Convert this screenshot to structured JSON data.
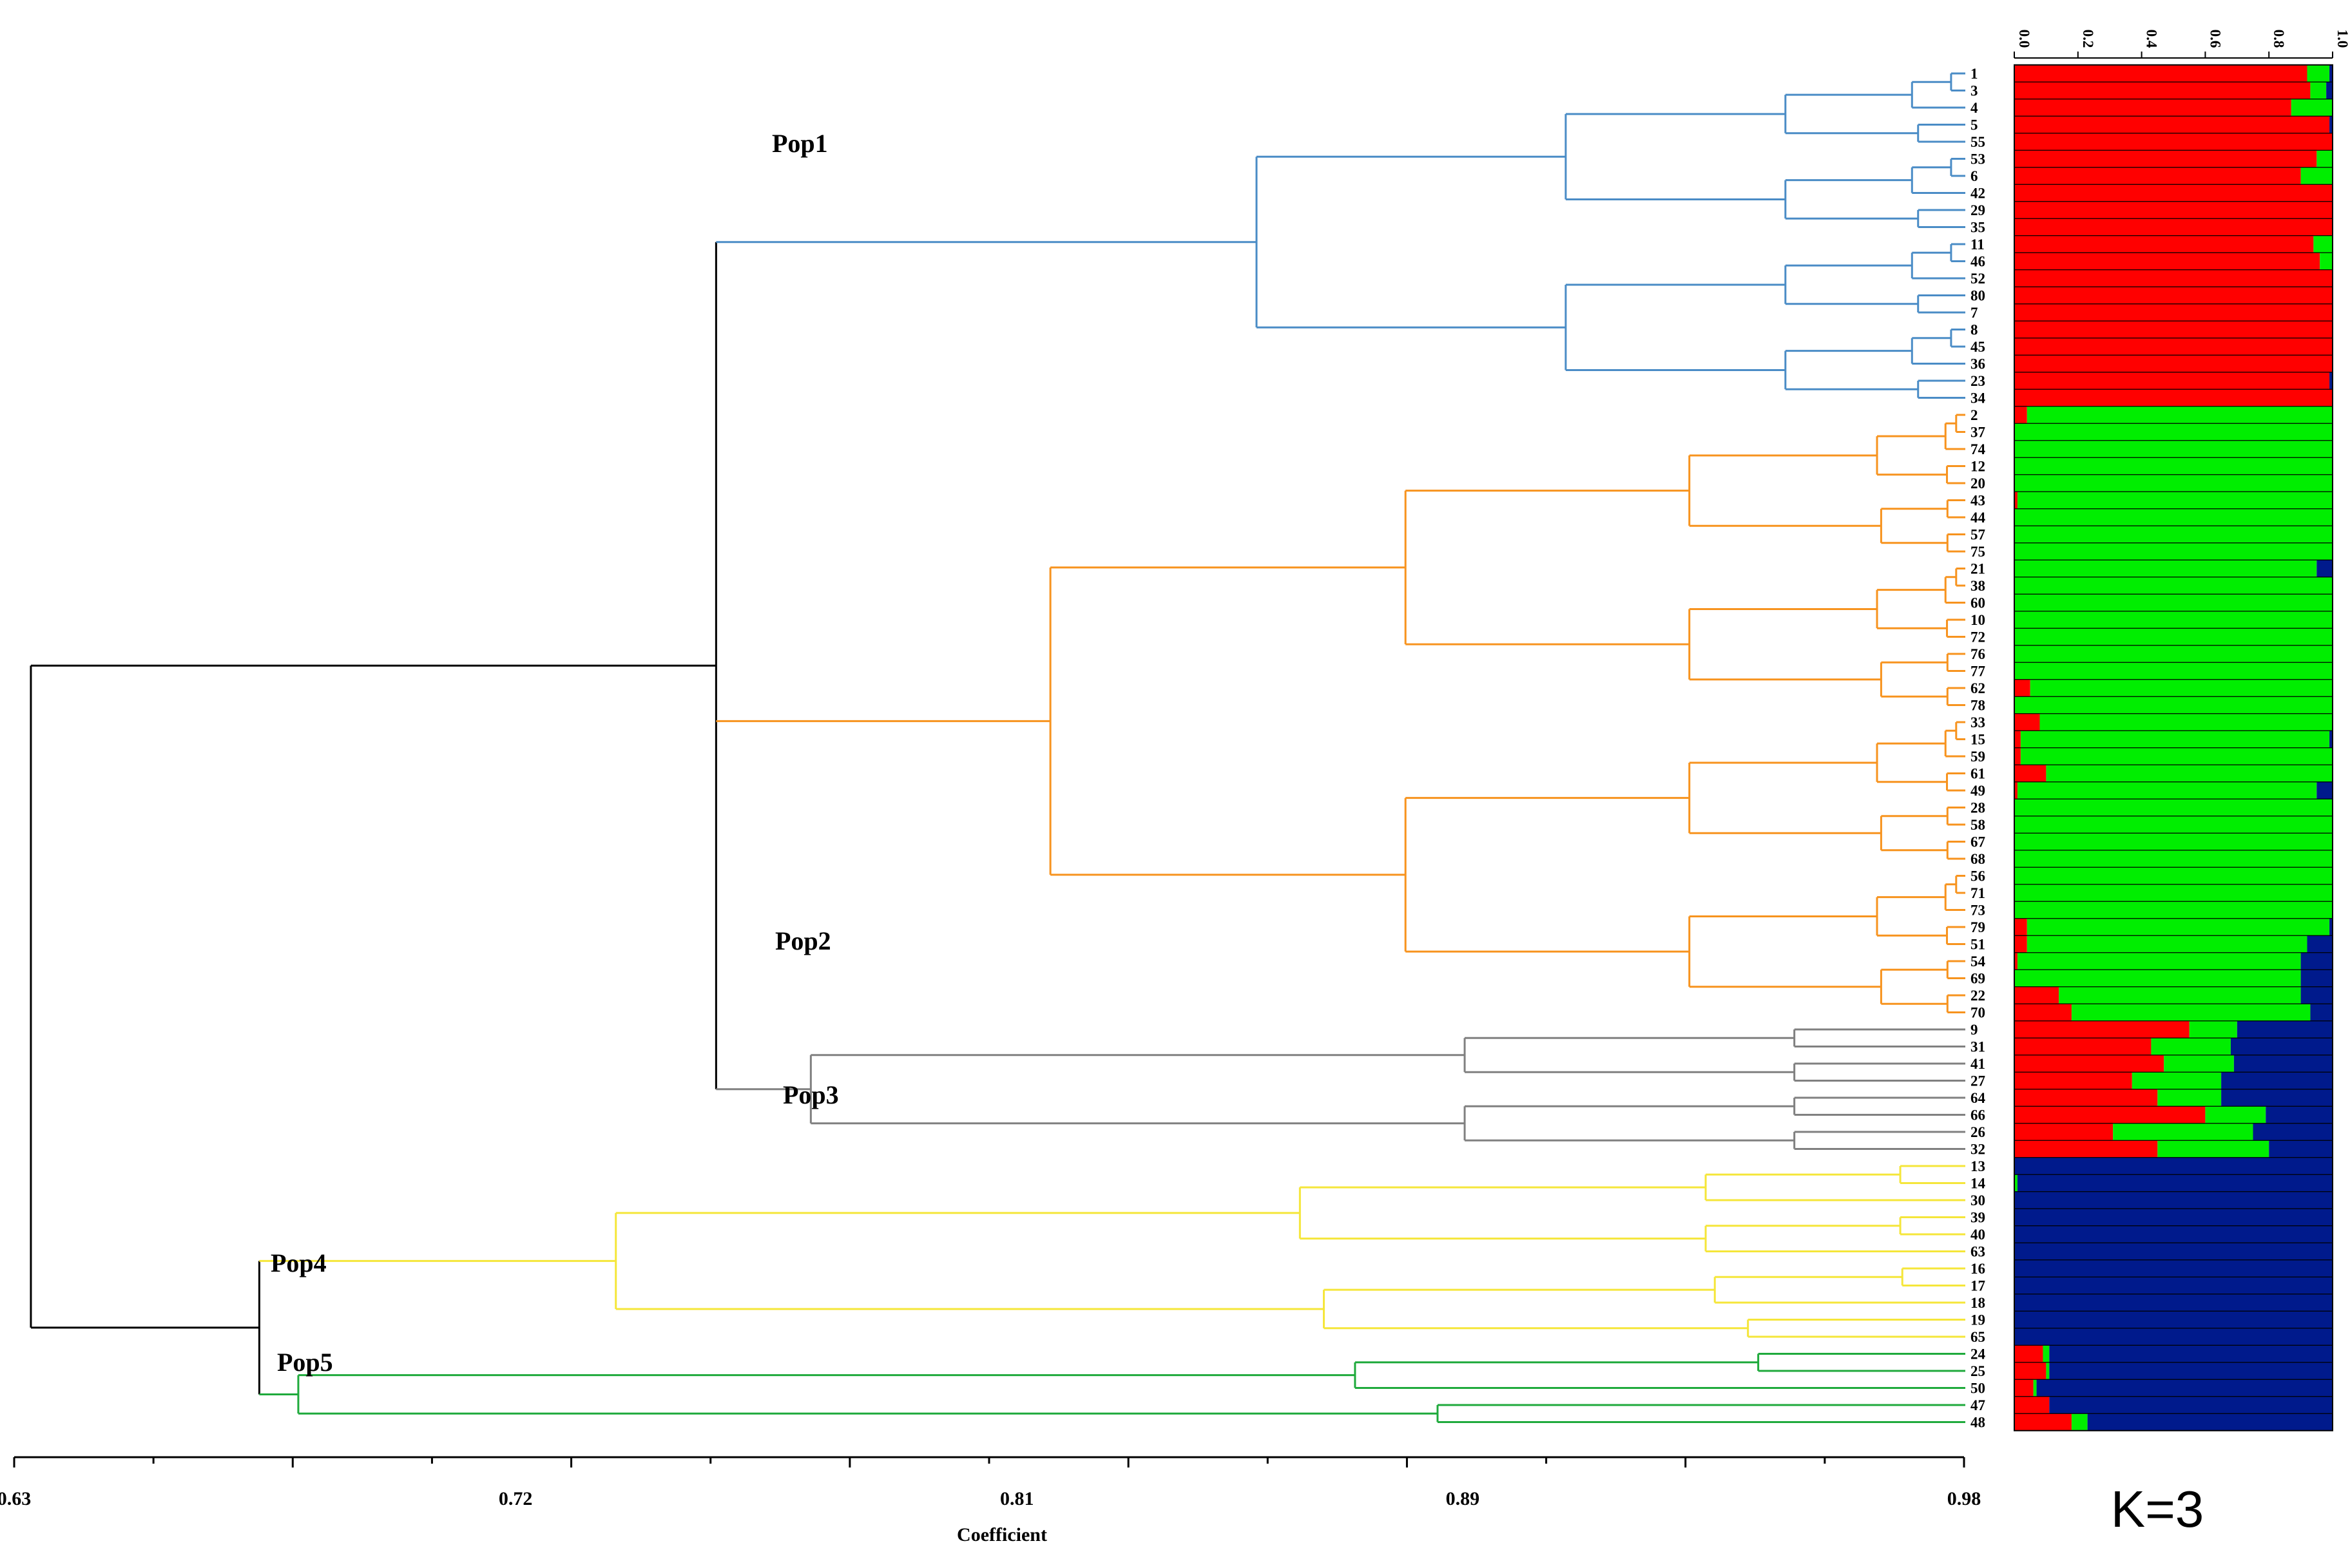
{
  "chart_data": [
    {
      "type": "dendrogram",
      "title": "",
      "xlabel": "Coefficient",
      "ylabel": "",
      "xlim": [
        0.63,
        0.98
      ],
      "x_ticks": [
        0.63,
        0.72,
        0.81,
        0.89,
        0.98
      ],
      "x_tick_labels": [
        "0.63",
        "0.72",
        "0.81",
        "0.89",
        "0.98"
      ],
      "leaf_order": [
        "1",
        "3",
        "4",
        "5",
        "55",
        "53",
        "6",
        "42",
        "29",
        "35",
        "11",
        "46",
        "52",
        "80",
        "7",
        "8",
        "45",
        "36",
        "23",
        "34",
        "2",
        "37",
        "74",
        "12",
        "20",
        "43",
        "44",
        "57",
        "75",
        "21",
        "38",
        "60",
        "10",
        "72",
        "76",
        "77",
        "62",
        "78",
        "33",
        "15",
        "59",
        "61",
        "49",
        "28",
        "58",
        "67",
        "68",
        "56",
        "71",
        "73",
        "79",
        "51",
        "54",
        "69",
        "22",
        "70",
        "9",
        "31",
        "41",
        "27",
        "64",
        "66",
        "26",
        "32",
        "13",
        "14",
        "30",
        "39",
        "40",
        "63",
        "16",
        "17",
        "18",
        "19",
        "65",
        "24",
        "25",
        "50",
        "47",
        "48"
      ],
      "clusters": [
        {
          "name": "Pop1",
          "color": "#4a8cc6",
          "leaves": [
            "1",
            "3",
            "4",
            "5",
            "55",
            "53",
            "6",
            "42",
            "29",
            "35",
            "11",
            "46",
            "52",
            "80",
            "7",
            "8",
            "45",
            "36",
            "23",
            "34"
          ]
        },
        {
          "name": "Pop2",
          "color": "#f7931e",
          "leaves": [
            "2",
            "37",
            "74",
            "12",
            "20",
            "43",
            "44",
            "57",
            "75",
            "21",
            "38",
            "60",
            "10",
            "72",
            "76",
            "77",
            "62",
            "78",
            "33",
            "15",
            "59",
            "61",
            "49",
            "28",
            "58",
            "67",
            "68",
            "56",
            "71",
            "73",
            "79",
            "51",
            "54",
            "69",
            "22",
            "70"
          ]
        },
        {
          "name": "Pop3",
          "color": "#808080",
          "leaves": [
            "9",
            "31",
            "41",
            "27",
            "64",
            "66",
            "26",
            "32"
          ]
        },
        {
          "name": "Pop4",
          "color": "#f5e63a",
          "leaves": [
            "13",
            "14",
            "30",
            "39",
            "40",
            "63",
            "16",
            "17",
            "18",
            "19",
            "65"
          ]
        },
        {
          "name": "Pop5",
          "color": "#1faa3c",
          "leaves": [
            "24",
            "25",
            "50",
            "47",
            "48"
          ]
        }
      ],
      "root_color": "#000000",
      "merges": [
        {
          "leaves": [
            "1",
            "3",
            "4",
            "5",
            "55",
            "53",
            "6",
            "42",
            "29",
            "35",
            "11",
            "46",
            "52",
            "80",
            "7",
            "8",
            "45",
            "36",
            "23",
            "34"
          ],
          "x": 0.853
        },
        {
          "leaves": [
            "2",
            "37",
            "74",
            "12",
            "20",
            "43",
            "44",
            "57",
            "75",
            "21",
            "38",
            "60",
            "10",
            "72",
            "76",
            "77",
            "62",
            "78",
            "33",
            "15",
            "59",
            "61",
            "49",
            "28",
            "58",
            "67",
            "68",
            "56",
            "71",
            "73",
            "79",
            "51",
            "54",
            "69",
            "22",
            "70"
          ],
          "x": 0.816
        },
        {
          "leaves": [
            "9",
            "31",
            "41",
            "27",
            "64",
            "66",
            "26",
            "32"
          ],
          "x": 0.773
        },
        {
          "leaves": [
            "13",
            "14",
            "30",
            "39",
            "40",
            "63",
            "16",
            "17",
            "18",
            "19",
            "65"
          ],
          "x": 0.738
        },
        {
          "leaves": [
            "24",
            "25",
            "50",
            "47",
            "48"
          ],
          "x": 0.681
        },
        {
          "leaves": [
            "1",
            "2",
            "9"
          ],
          "x": 0.756
        },
        {
          "leaves": [
            "13",
            "24"
          ],
          "x": 0.674
        },
        {
          "leaves": [
            "1",
            "13"
          ],
          "x": 0.633
        }
      ]
    },
    {
      "type": "stacked-bar",
      "orientation": "horizontal",
      "title": "K=3",
      "xlim": [
        0.0,
        1.0
      ],
      "x_ticks": [
        0.0,
        0.2,
        0.4,
        0.6,
        0.8,
        1.0
      ],
      "x_tick_labels": [
        "0.0",
        "0.2",
        "0.4",
        "0.6",
        "0.8",
        "1.0"
      ],
      "series_colors": {
        "red": "#ff0000",
        "green": "#00ee00",
        "blue": "#001a8c"
      },
      "rows": [
        {
          "id": "1",
          "red": 0.92,
          "green": 0.07,
          "blue": 0.01
        },
        {
          "id": "3",
          "red": 0.93,
          "green": 0.05,
          "blue": 0.02
        },
        {
          "id": "4",
          "red": 0.87,
          "green": 0.13,
          "blue": 0.0
        },
        {
          "id": "5",
          "red": 0.99,
          "green": 0.0,
          "blue": 0.01
        },
        {
          "id": "55",
          "red": 1.0,
          "green": 0.0,
          "blue": 0.0
        },
        {
          "id": "53",
          "red": 0.95,
          "green": 0.05,
          "blue": 0.0
        },
        {
          "id": "6",
          "red": 0.9,
          "green": 0.1,
          "blue": 0.0
        },
        {
          "id": "42",
          "red": 1.0,
          "green": 0.0,
          "blue": 0.0
        },
        {
          "id": "29",
          "red": 1.0,
          "green": 0.0,
          "blue": 0.0
        },
        {
          "id": "35",
          "red": 1.0,
          "green": 0.0,
          "blue": 0.0
        },
        {
          "id": "11",
          "red": 0.94,
          "green": 0.06,
          "blue": 0.0
        },
        {
          "id": "46",
          "red": 0.96,
          "green": 0.04,
          "blue": 0.0
        },
        {
          "id": "52",
          "red": 1.0,
          "green": 0.0,
          "blue": 0.0
        },
        {
          "id": "80",
          "red": 1.0,
          "green": 0.0,
          "blue": 0.0
        },
        {
          "id": "7",
          "red": 1.0,
          "green": 0.0,
          "blue": 0.0
        },
        {
          "id": "8",
          "red": 1.0,
          "green": 0.0,
          "blue": 0.0
        },
        {
          "id": "45",
          "red": 1.0,
          "green": 0.0,
          "blue": 0.0
        },
        {
          "id": "36",
          "red": 1.0,
          "green": 0.0,
          "blue": 0.0
        },
        {
          "id": "23",
          "red": 0.99,
          "green": 0.0,
          "blue": 0.01
        },
        {
          "id": "34",
          "red": 1.0,
          "green": 0.0,
          "blue": 0.0
        },
        {
          "id": "2",
          "red": 0.04,
          "green": 0.96,
          "blue": 0.0
        },
        {
          "id": "37",
          "red": 0.0,
          "green": 1.0,
          "blue": 0.0
        },
        {
          "id": "74",
          "red": 0.0,
          "green": 1.0,
          "blue": 0.0
        },
        {
          "id": "12",
          "red": 0.0,
          "green": 1.0,
          "blue": 0.0
        },
        {
          "id": "20",
          "red": 0.0,
          "green": 1.0,
          "blue": 0.0
        },
        {
          "id": "43",
          "red": 0.01,
          "green": 0.99,
          "blue": 0.0
        },
        {
          "id": "44",
          "red": 0.0,
          "green": 1.0,
          "blue": 0.0
        },
        {
          "id": "57",
          "red": 0.0,
          "green": 1.0,
          "blue": 0.0
        },
        {
          "id": "75",
          "red": 0.0,
          "green": 1.0,
          "blue": 0.0
        },
        {
          "id": "21",
          "red": 0.0,
          "green": 0.95,
          "blue": 0.05
        },
        {
          "id": "38",
          "red": 0.0,
          "green": 1.0,
          "blue": 0.0
        },
        {
          "id": "60",
          "red": 0.0,
          "green": 1.0,
          "blue": 0.0
        },
        {
          "id": "10",
          "red": 0.0,
          "green": 1.0,
          "blue": 0.0
        },
        {
          "id": "72",
          "red": 0.0,
          "green": 1.0,
          "blue": 0.0
        },
        {
          "id": "76",
          "red": 0.0,
          "green": 1.0,
          "blue": 0.0
        },
        {
          "id": "77",
          "red": 0.0,
          "green": 1.0,
          "blue": 0.0
        },
        {
          "id": "62",
          "red": 0.05,
          "green": 0.95,
          "blue": 0.0
        },
        {
          "id": "78",
          "red": 0.0,
          "green": 1.0,
          "blue": 0.0
        },
        {
          "id": "33",
          "red": 0.08,
          "green": 0.92,
          "blue": 0.0
        },
        {
          "id": "15",
          "red": 0.02,
          "green": 0.97,
          "blue": 0.01
        },
        {
          "id": "59",
          "red": 0.02,
          "green": 0.98,
          "blue": 0.0
        },
        {
          "id": "61",
          "red": 0.1,
          "green": 0.9,
          "blue": 0.0
        },
        {
          "id": "49",
          "red": 0.01,
          "green": 0.94,
          "blue": 0.05
        },
        {
          "id": "28",
          "red": 0.0,
          "green": 1.0,
          "blue": 0.0
        },
        {
          "id": "58",
          "red": 0.0,
          "green": 1.0,
          "blue": 0.0
        },
        {
          "id": "67",
          "red": 0.0,
          "green": 1.0,
          "blue": 0.0
        },
        {
          "id": "68",
          "red": 0.0,
          "green": 1.0,
          "blue": 0.0
        },
        {
          "id": "56",
          "red": 0.0,
          "green": 1.0,
          "blue": 0.0
        },
        {
          "id": "71",
          "red": 0.0,
          "green": 1.0,
          "blue": 0.0
        },
        {
          "id": "73",
          "red": 0.0,
          "green": 1.0,
          "blue": 0.0
        },
        {
          "id": "79",
          "red": 0.04,
          "green": 0.95,
          "blue": 0.01
        },
        {
          "id": "51",
          "red": 0.04,
          "green": 0.88,
          "blue": 0.08
        },
        {
          "id": "54",
          "red": 0.01,
          "green": 0.89,
          "blue": 0.1
        },
        {
          "id": "69",
          "red": 0.0,
          "green": 0.9,
          "blue": 0.1
        },
        {
          "id": "22",
          "red": 0.14,
          "green": 0.76,
          "blue": 0.1
        },
        {
          "id": "70",
          "red": 0.18,
          "green": 0.75,
          "blue": 0.07
        },
        {
          "id": "9",
          "red": 0.55,
          "green": 0.15,
          "blue": 0.3
        },
        {
          "id": "31",
          "red": 0.43,
          "green": 0.25,
          "blue": 0.32
        },
        {
          "id": "41",
          "red": 0.47,
          "green": 0.22,
          "blue": 0.31
        },
        {
          "id": "27",
          "red": 0.37,
          "green": 0.28,
          "blue": 0.35
        },
        {
          "id": "64",
          "red": 0.45,
          "green": 0.2,
          "blue": 0.35
        },
        {
          "id": "66",
          "red": 0.6,
          "green": 0.19,
          "blue": 0.21
        },
        {
          "id": "26",
          "red": 0.31,
          "green": 0.44,
          "blue": 0.25
        },
        {
          "id": "32",
          "red": 0.45,
          "green": 0.35,
          "blue": 0.2
        },
        {
          "id": "13",
          "red": 0.0,
          "green": 0.0,
          "blue": 1.0
        },
        {
          "id": "14",
          "red": 0.0,
          "green": 0.01,
          "blue": 0.99
        },
        {
          "id": "30",
          "red": 0.0,
          "green": 0.0,
          "blue": 1.0
        },
        {
          "id": "39",
          "red": 0.0,
          "green": 0.0,
          "blue": 1.0
        },
        {
          "id": "40",
          "red": 0.0,
          "green": 0.0,
          "blue": 1.0
        },
        {
          "id": "63",
          "red": 0.0,
          "green": 0.0,
          "blue": 1.0
        },
        {
          "id": "16",
          "red": 0.0,
          "green": 0.0,
          "blue": 1.0
        },
        {
          "id": "17",
          "red": 0.0,
          "green": 0.0,
          "blue": 1.0
        },
        {
          "id": "18",
          "red": 0.0,
          "green": 0.0,
          "blue": 1.0
        },
        {
          "id": "19",
          "red": 0.0,
          "green": 0.0,
          "blue": 1.0
        },
        {
          "id": "65",
          "red": 0.0,
          "green": 0.0,
          "blue": 1.0
        },
        {
          "id": "24",
          "red": 0.09,
          "green": 0.02,
          "blue": 0.89
        },
        {
          "id": "25",
          "red": 0.1,
          "green": 0.01,
          "blue": 0.89
        },
        {
          "id": "50",
          "red": 0.06,
          "green": 0.01,
          "blue": 0.93
        },
        {
          "id": "47",
          "red": 0.11,
          "green": 0.0,
          "blue": 0.89
        },
        {
          "id": "48",
          "red": 0.18,
          "green": 0.05,
          "blue": 0.77
        }
      ]
    }
  ]
}
